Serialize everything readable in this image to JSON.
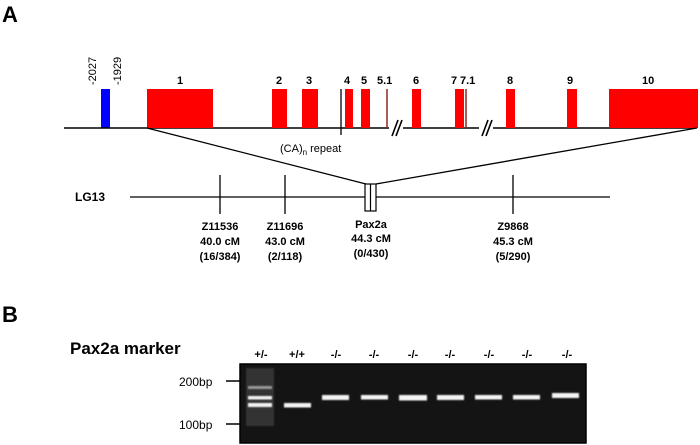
{
  "panel_a": {
    "label": "A",
    "upstream_labels": [
      "-2027",
      "-1929"
    ],
    "exons": [
      {
        "label": "1"
      },
      {
        "label": "2"
      },
      {
        "label": "3"
      },
      {
        "label": "4"
      },
      {
        "label": "5"
      },
      {
        "label": "5.1"
      },
      {
        "label": "6"
      },
      {
        "label": "7"
      },
      {
        "label": "7.1"
      },
      {
        "label": "8"
      },
      {
        "label": "9"
      },
      {
        "label": "10"
      }
    ],
    "repeat_label": "(CA)",
    "repeat_sub": "n",
    "repeat_suffix": " repeat",
    "linkage_group": "LG13",
    "markers": [
      {
        "name": "Z11536",
        "position": "40.0 cM",
        "ratio": "(16/384)"
      },
      {
        "name": "Z11696",
        "position": "43.0 cM",
        "ratio": "(2/118)"
      },
      {
        "name": "Pax2a",
        "position": "44.3 cM",
        "ratio": "(0/430)"
      },
      {
        "name": "Z9868",
        "position": "45.3 cM",
        "ratio": "(5/290)"
      }
    ],
    "colors": {
      "exon": "#ff0000",
      "upstream": "#0000ff",
      "line": "#000000"
    }
  },
  "panel_b": {
    "label": "B",
    "title": "Pax2a marker",
    "size_markers": [
      "200bp",
      "100bp"
    ],
    "lanes": [
      "+/-",
      "+/+",
      "-/-",
      "-/-",
      "-/-",
      "-/-",
      "-/-",
      "-/-",
      "-/-"
    ],
    "gel_color": "#141414"
  }
}
